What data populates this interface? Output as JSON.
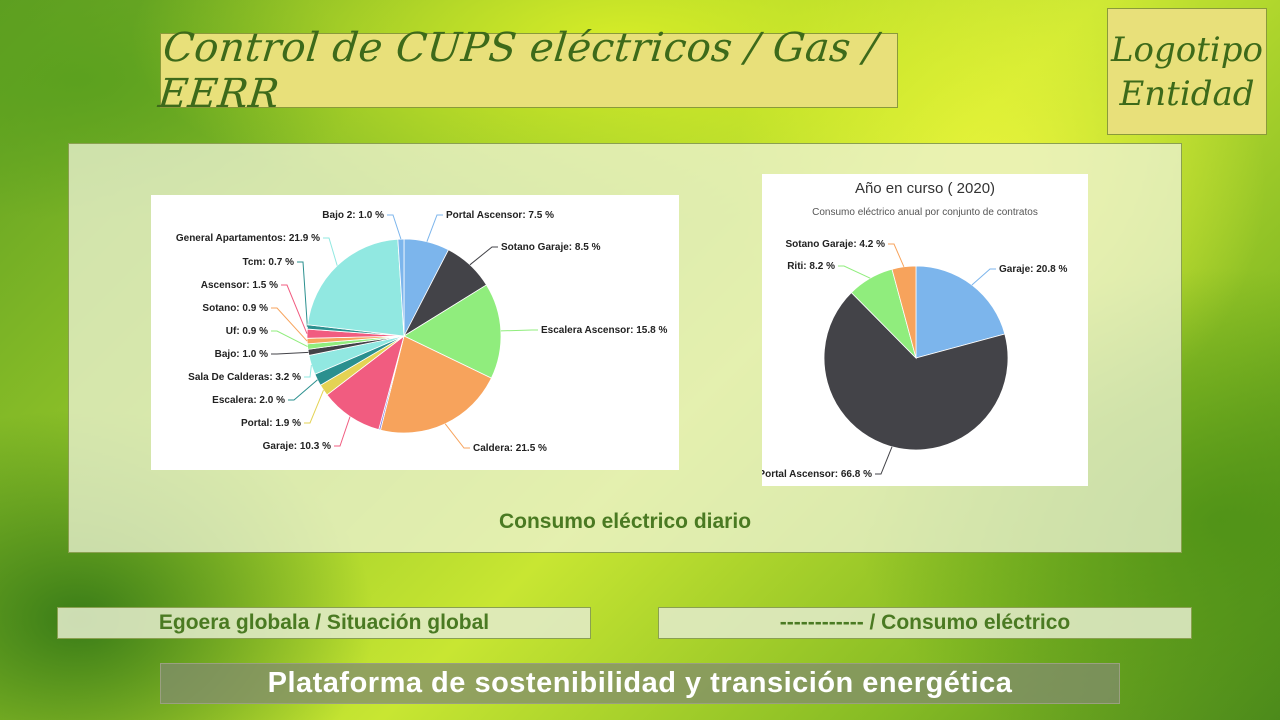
{
  "header": {
    "title": "Control de CUPS eléctricos / Gas / EERR",
    "logo_line1": "Logotipo",
    "logo_line2": "Entidad"
  },
  "panel": {
    "caption": "Consumo eléctrico diario"
  },
  "nav": {
    "left_label": "Egoera globala / Situación global",
    "right_label": "------------  / Consumo eléctrico"
  },
  "footer": {
    "tagline": "Plataforma de sostenibilidad y transición energética"
  },
  "chart_data": [
    {
      "type": "pie",
      "title": "",
      "slices": [
        {
          "label": "Portal Ascensor: 7.5 %",
          "value": 7.5,
          "color": "#7cb5ec"
        },
        {
          "label": "Sotano Garaje: 8.5 %",
          "value": 8.5,
          "color": "#434348"
        },
        {
          "label": "Escalera Ascensor: 15.8 %",
          "value": 15.8,
          "color": "#90ed7d"
        },
        {
          "label": "Caldera: 21.5 %",
          "value": 21.5,
          "color": "#f7a35c"
        },
        {
          "label": "",
          "value": 0.3,
          "color": "#8085e9"
        },
        {
          "label": "Garaje: 10.3 %",
          "value": 10.3,
          "color": "#f15c80"
        },
        {
          "label": "Portal: 1.9 %",
          "value": 1.9,
          "color": "#e4d354"
        },
        {
          "label": "Escalera: 2.0 %",
          "value": 2.0,
          "color": "#2b908f"
        },
        {
          "label": "Sala De Calderas: 3.2 %",
          "value": 3.2,
          "color": "#91e8e1"
        },
        {
          "label": "Bajo: 1.0 %",
          "value": 1.0,
          "color": "#434348"
        },
        {
          "label": "Uf: 0.9 %",
          "value": 0.9,
          "color": "#90ed7d"
        },
        {
          "label": "Sotano: 0.9 %",
          "value": 0.9,
          "color": "#f7a35c"
        },
        {
          "label": "Ascensor: 1.5 %",
          "value": 1.5,
          "color": "#f15c80"
        },
        {
          "label": "Tcm: 0.7 %",
          "value": 0.7,
          "color": "#2b908f"
        },
        {
          "label": "General Apartamentos: 21.9 %",
          "value": 21.9,
          "color": "#91e8e1"
        },
        {
          "label": "Bajo 2: 1.0 %",
          "value": 1.0,
          "color": "#7cb5ec"
        }
      ]
    },
    {
      "type": "pie",
      "title": "Año en curso ( 2020)",
      "subtitle": "Consumo eléctrico anual por conjunto de contratos",
      "slices": [
        {
          "label": "Garaje: 20.8 %",
          "value": 20.8,
          "color": "#7cb5ec"
        },
        {
          "label": "Portal Ascensor: 66.8 %",
          "value": 66.8,
          "color": "#434348"
        },
        {
          "label": "Riti: 8.2 %",
          "value": 8.2,
          "color": "#90ed7d"
        },
        {
          "label": "Sotano Garaje: 4.2 %",
          "value": 4.2,
          "color": "#f7a35c"
        }
      ]
    }
  ]
}
